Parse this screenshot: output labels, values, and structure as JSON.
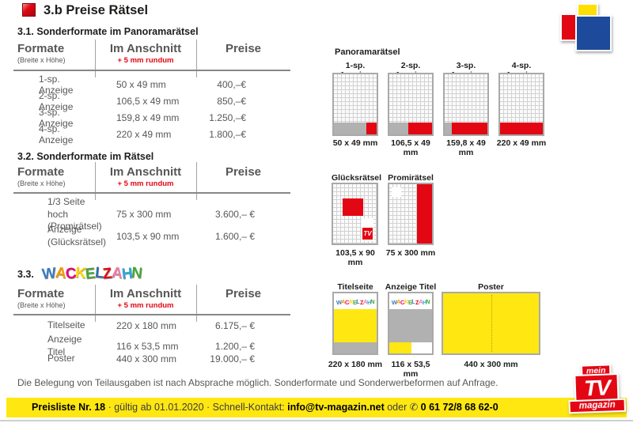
{
  "title": "3.b Preise Rätsel",
  "sections": {
    "s1": {
      "heading": "3.1. Sonderformate im Panoramarätsel"
    },
    "s2": {
      "heading": "3.2. Sonderformate im Rätsel"
    },
    "s3": {
      "heading_prefix": "3.3."
    }
  },
  "table_header": {
    "formats": "Formate",
    "formats_sub": "(Breite x Höhe)",
    "bleed": "Im Anschnitt",
    "bleed_sub": "+ 5 mm rundum",
    "prices": "Preise"
  },
  "tables": {
    "panorama": {
      "rows": [
        {
          "format": "1-sp. Anzeige",
          "size": "50 x 49 mm",
          "price": "400,–€"
        },
        {
          "format": "2-sp. Anzeige",
          "size": "106,5 x 49 mm",
          "price": "850,–€"
        },
        {
          "format": "3-sp. Anzeige",
          "size": "159,8 x 49 mm",
          "price": "1.250,–€"
        },
        {
          "format": "4-sp. Anzeige",
          "size": "220 x 49 mm",
          "price": "1.800,–€"
        }
      ]
    },
    "raetsel": {
      "rows": [
        {
          "format_line1": "1/3 Seite hoch",
          "format_line2": "(Promirätsel)",
          "size": "75 x 300 mm",
          "price": "3.600,– €"
        },
        {
          "format_line1": "Anzeige",
          "format_line2": "(Glücksrätsel)",
          "size": "103,5 x 90 mm",
          "price": "1.600,– €"
        }
      ]
    },
    "wackelzahn": {
      "rows": [
        {
          "format": "Titelseite",
          "size": "220 x 180 mm",
          "price": "6.175,– €"
        },
        {
          "format": "Anzeige Titel",
          "size": "116 x 53,5 mm",
          "price": "1.200,– €"
        },
        {
          "format": "Poster",
          "size": "440 x 300 mm",
          "price": "19.000,– €"
        }
      ]
    }
  },
  "diagrams": {
    "panorama": {
      "title": "Panoramarätsel",
      "items": [
        {
          "label": "1-sp. Anzeige",
          "caption": "50 x 49 mm"
        },
        {
          "label": "2-sp. Anzeige",
          "caption": "106,5 x 49 mm"
        },
        {
          "label": "3-sp. Anzeige",
          "caption": "159,8 x 49 mm"
        },
        {
          "label": "4-sp. Anzeige",
          "caption": "220 x 49 mm"
        }
      ]
    },
    "raetsel": {
      "items": [
        {
          "label": "Glücksrätsel",
          "caption": "103,5 x 90 mm"
        },
        {
          "label": "Promirätsel",
          "caption": "75 x 300 mm"
        }
      ]
    },
    "wackelzahn": {
      "items": [
        {
          "label": "Titelseite",
          "caption": "220 x 180 mm"
        },
        {
          "label": "Anzeige Titel",
          "caption": "116 x 53,5 mm"
        },
        {
          "label": "Poster",
          "caption": "440 x 300 mm"
        }
      ]
    }
  },
  "note": "Die Belegung von Teilausgaben ist nach Absprache möglich. Sonderformate und Sonderwerbeformen auf Anfrage.",
  "footer": {
    "bold_title": "Preisliste Nr. 18",
    "middle": " · gültig ab 01.01.2020 · Schnell-Kontakt: ",
    "email": "info@tv-magazin.net",
    "oder": " oder ",
    "phone_icon": "✆",
    "phone": " 0 61 72/8 68 62-0"
  },
  "logos": {
    "tv_magazin": {
      "top": "mein",
      "mid": "TV",
      "bottom": "magazin"
    },
    "mini_tv": "TV",
    "wackelzahn_letters": [
      {
        "ch": "W",
        "color": "#3a7ec2"
      },
      {
        "ch": "A",
        "color": "#f59c00"
      },
      {
        "ch": "C",
        "color": "#e6007e"
      },
      {
        "ch": "K",
        "color": "#ffd500"
      },
      {
        "ch": "E",
        "color": "#44a738"
      },
      {
        "ch": "L",
        "color": "#2e6db4"
      },
      {
        "ch": "Z",
        "color": "#e30613"
      },
      {
        "ch": "A",
        "color": "#ef7bac"
      },
      {
        "ch": "H",
        "color": "#29a8e0"
      },
      {
        "ch": "N",
        "color": "#44a738"
      }
    ]
  },
  "colors": {
    "red": "#e30613",
    "yellow": "#ffe712",
    "blue": "#1d4a9b",
    "brand_yellow": "#ffdf00",
    "gray_zone": "#b1b1b1"
  }
}
